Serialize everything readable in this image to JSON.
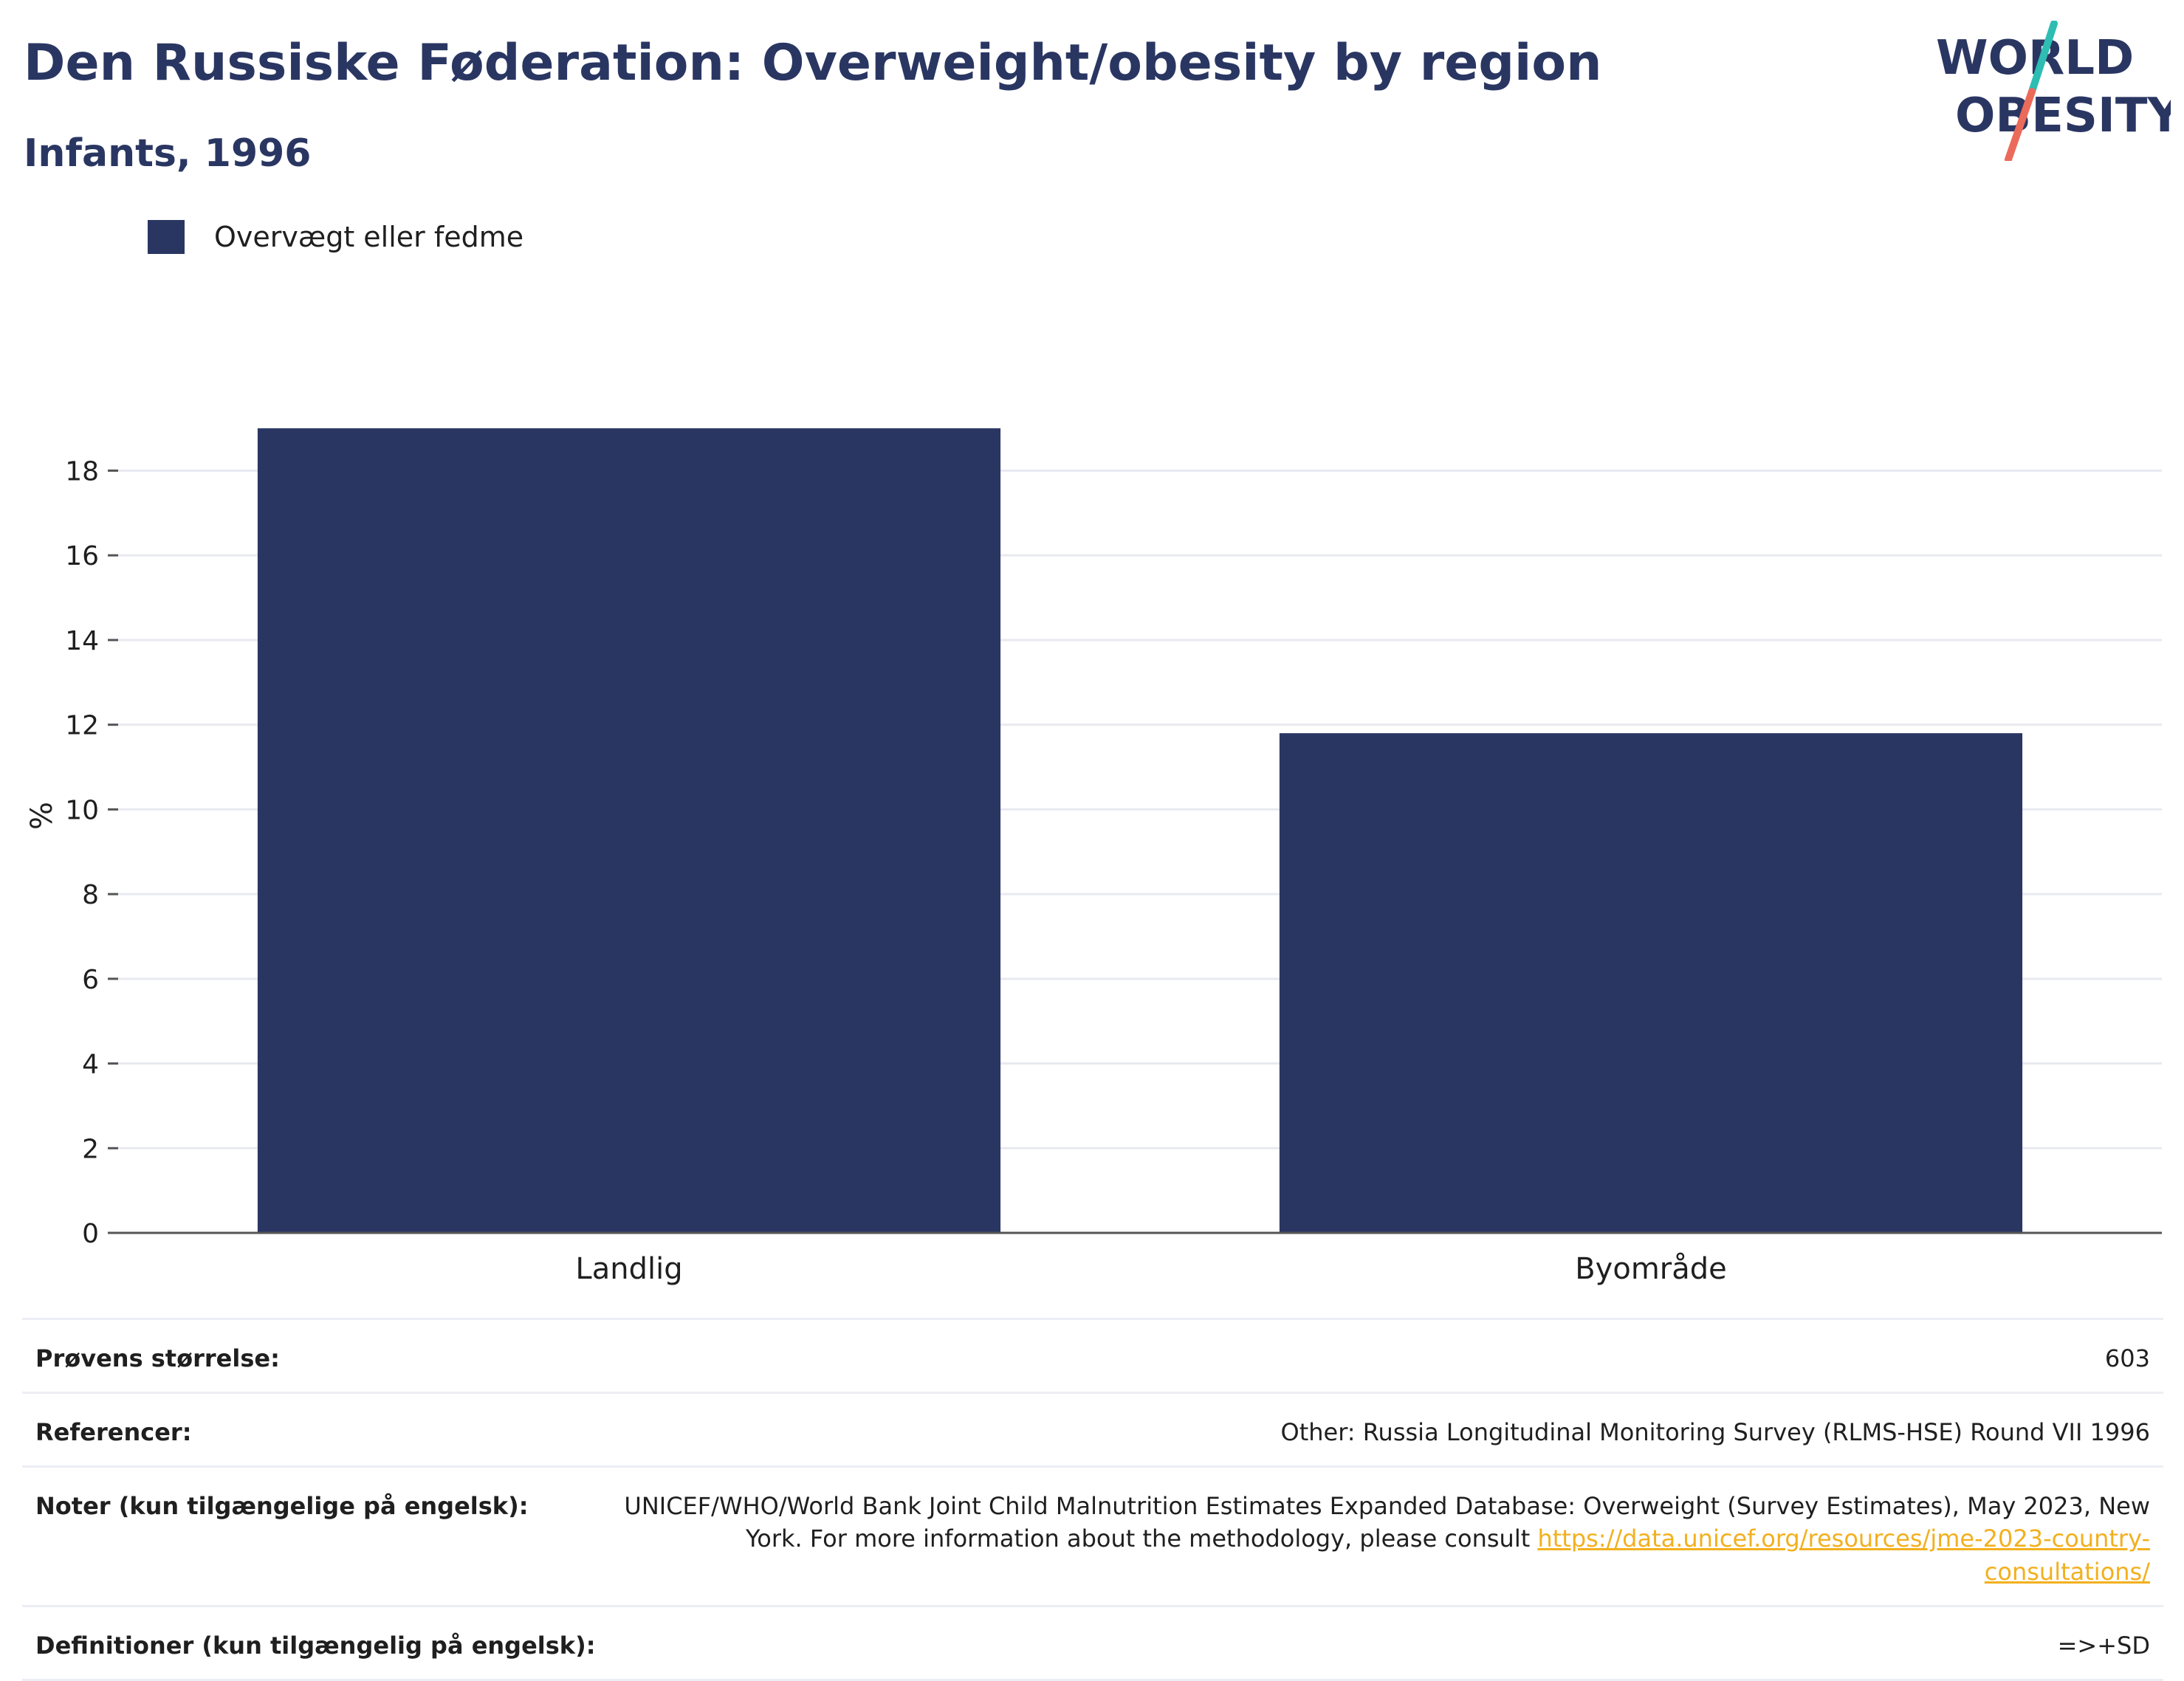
{
  "header": {
    "title": "Den Russiske Føderation: Overweight/obesity by region",
    "subtitle": "Infants, 1996",
    "logo_line1": "WORLD",
    "logo_line2": "OBESITY"
  },
  "legend": {
    "label": "Overvægt eller fedme"
  },
  "colors": {
    "bar": "#2a3662",
    "grid": "#e8eaf0",
    "axis": "#555555",
    "logo_text": "#2a3662",
    "logo_teal": "#2dbdb2",
    "logo_coral": "#ec6a5a",
    "link": "#f2b01e"
  },
  "chart_data": {
    "type": "bar",
    "categories": [
      "Landlig",
      "Byområde"
    ],
    "series": [
      {
        "name": "Overvægt eller fedme",
        "values": [
          19.0,
          11.8
        ]
      }
    ],
    "ylabel": "%",
    "xlabel": "",
    "ylim": [
      0,
      19.7
    ],
    "yticks": [
      0,
      2,
      4,
      6,
      8,
      10,
      12,
      14,
      16,
      18
    ],
    "grid": true,
    "legend_position": "top-left"
  },
  "info": {
    "sample_size": {
      "label": "Prøvens størrelse:",
      "value": "603"
    },
    "references": {
      "label": "Referencer:",
      "value": "Other: Russia Longitudinal Monitoring Survey (RLMS-HSE) Round VII 1996"
    },
    "notes": {
      "label": "Noter (kun tilgængelige på engelsk):",
      "value": "UNICEF/WHO/World Bank Joint Child Malnutrition Estimates Expanded Database: Overweight (Survey Estimates), May 2023, New York. For more information about the methodology, please consult ",
      "link": "https://data.unicef.org/resources/jme-2023-country-consultations/"
    },
    "definitions": {
      "label": "Definitioner (kun tilgængelig på engelsk):",
      "value": "=>+SD"
    }
  }
}
